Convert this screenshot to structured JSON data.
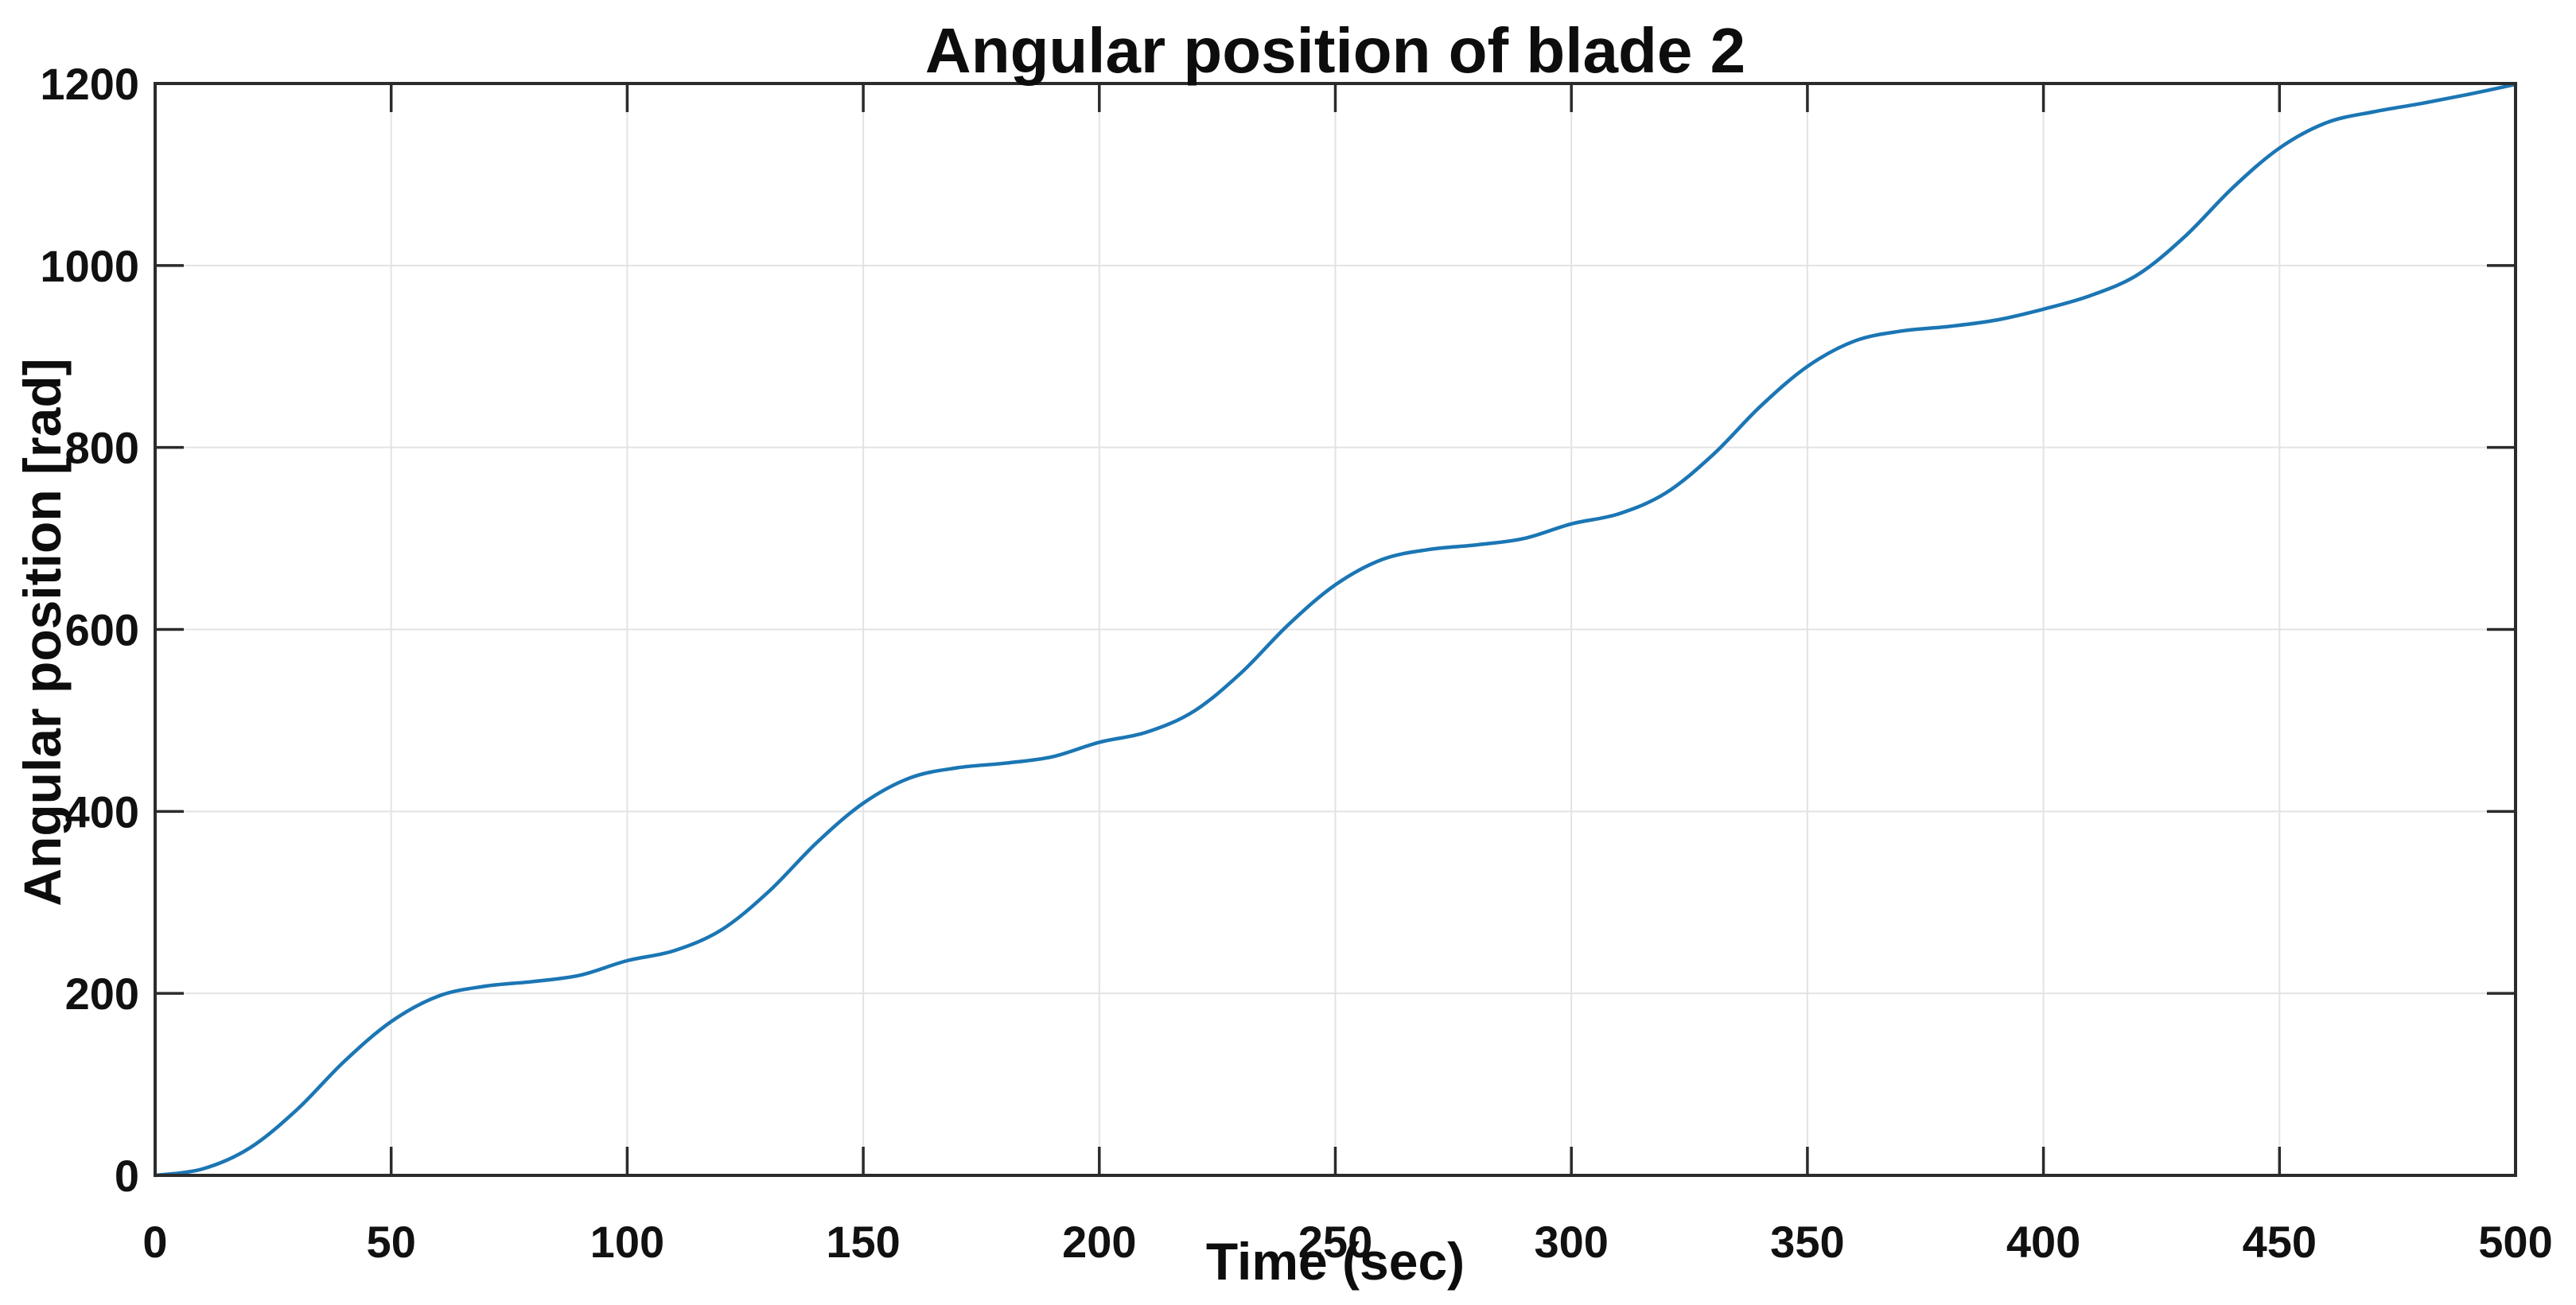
{
  "figure": {
    "title": "Angular position of blade 2",
    "xlabel": "Time (sec)",
    "ylabel": "Angular position [rad]"
  },
  "chart_data": {
    "type": "line",
    "title": "Angular position of blade 2",
    "xlabel": "Time (sec)",
    "ylabel": "Angular position [rad]",
    "x": [
      0,
      10,
      20,
      30,
      40,
      50,
      60,
      70,
      80,
      90,
      100,
      110,
      120,
      130,
      140,
      150,
      160,
      170,
      180,
      190,
      200,
      210,
      220,
      230,
      240,
      250,
      260,
      270,
      280,
      290,
      300,
      310,
      320,
      330,
      340,
      350,
      360,
      370,
      380,
      390,
      400,
      410,
      420,
      430,
      440,
      450,
      460,
      470,
      480,
      490,
      500
    ],
    "y": [
      0,
      7,
      30,
      72,
      125,
      169,
      197,
      208,
      213,
      220,
      236,
      247,
      270,
      312,
      365,
      409,
      437,
      448,
      453,
      460,
      476,
      487,
      510,
      552,
      605,
      649,
      677,
      688,
      693,
      700,
      716,
      727,
      750,
      792,
      845,
      889,
      917,
      928,
      933,
      940,
      952,
      967,
      990,
      1032,
      1085,
      1129,
      1157,
      1169,
      1178,
      1188,
      1199
    ],
    "xlim": [
      0,
      500
    ],
    "ylim": [
      0,
      1200
    ],
    "xticks": [
      0,
      50,
      100,
      150,
      200,
      250,
      300,
      350,
      400,
      450,
      500
    ],
    "yticks": [
      0,
      200,
      400,
      600,
      800,
      1000,
      1200
    ],
    "grid": true,
    "legend": null,
    "colors": {
      "line": "#1b76b4",
      "axis": "#2b2b2b",
      "grid": "#e3e3e3",
      "text": "#111111",
      "background": "#ffffff"
    }
  }
}
